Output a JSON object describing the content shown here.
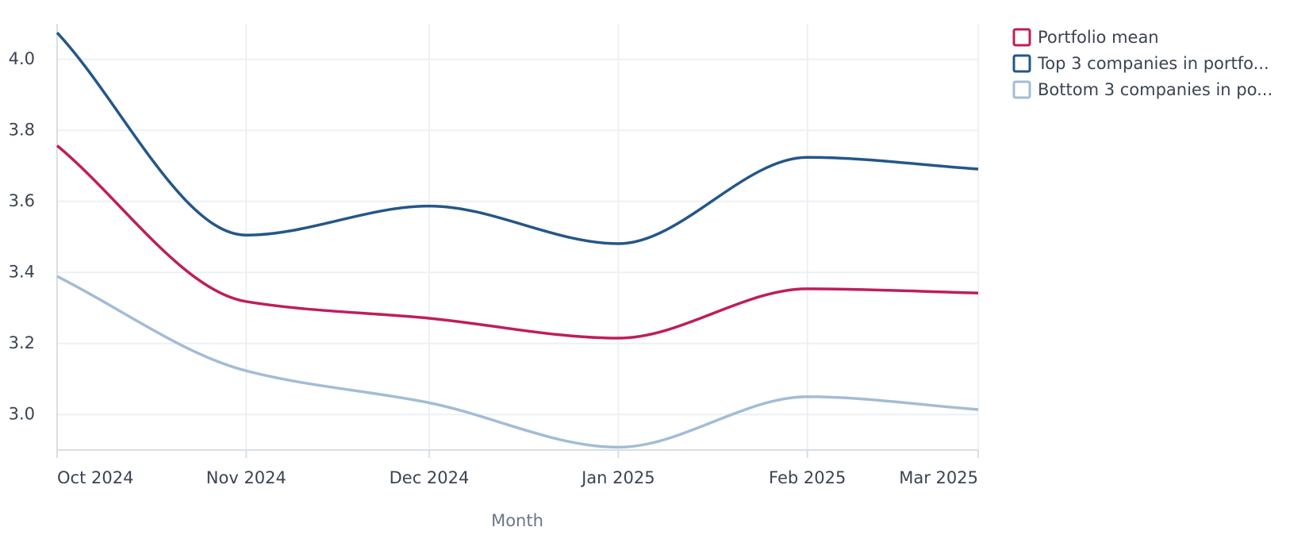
{
  "chart_data": {
    "type": "line",
    "x_label": "Month",
    "x": [
      "2024-10",
      "2024-11",
      "2024-12",
      "2025-01",
      "2025-02",
      "2025-03"
    ],
    "xticks": [
      {
        "value": "2024-10",
        "label": "Oct 2024"
      },
      {
        "value": "2024-11",
        "label": "Nov 2024"
      },
      {
        "value": "2024-12",
        "label": "Dec 2024"
      },
      {
        "value": "2025-01",
        "label": "Jan 2025"
      },
      {
        "value": "2025-02",
        "label": "Feb 2025"
      },
      {
        "value": "2025-03",
        "label": "Mar 2025"
      }
    ],
    "ylim": [
      2.9,
      4.1
    ],
    "yticks": [
      {
        "value": 3,
        "label": "3.0"
      },
      3.2,
      3.4,
      3.6,
      3.8,
      {
        "value": 4,
        "label": "4.0"
      }
    ],
    "grid": true,
    "legend": "right",
    "series": [
      {
        "name": "Portfolio mean",
        "color": "#be1e5c",
        "values": [
          3.757,
          3.318,
          3.271,
          3.215,
          3.354,
          3.342
        ]
      },
      {
        "name": "Top 3 companies in portfo...",
        "color": "#235789",
        "values": [
          4.075,
          3.505,
          3.587,
          3.481,
          3.724,
          3.691
        ]
      },
      {
        "name": "Bottom 3 companies in po...",
        "color": "#a3bcd6",
        "values": [
          3.389,
          3.123,
          3.033,
          2.908,
          3.05,
          3.014
        ]
      }
    ]
  }
}
